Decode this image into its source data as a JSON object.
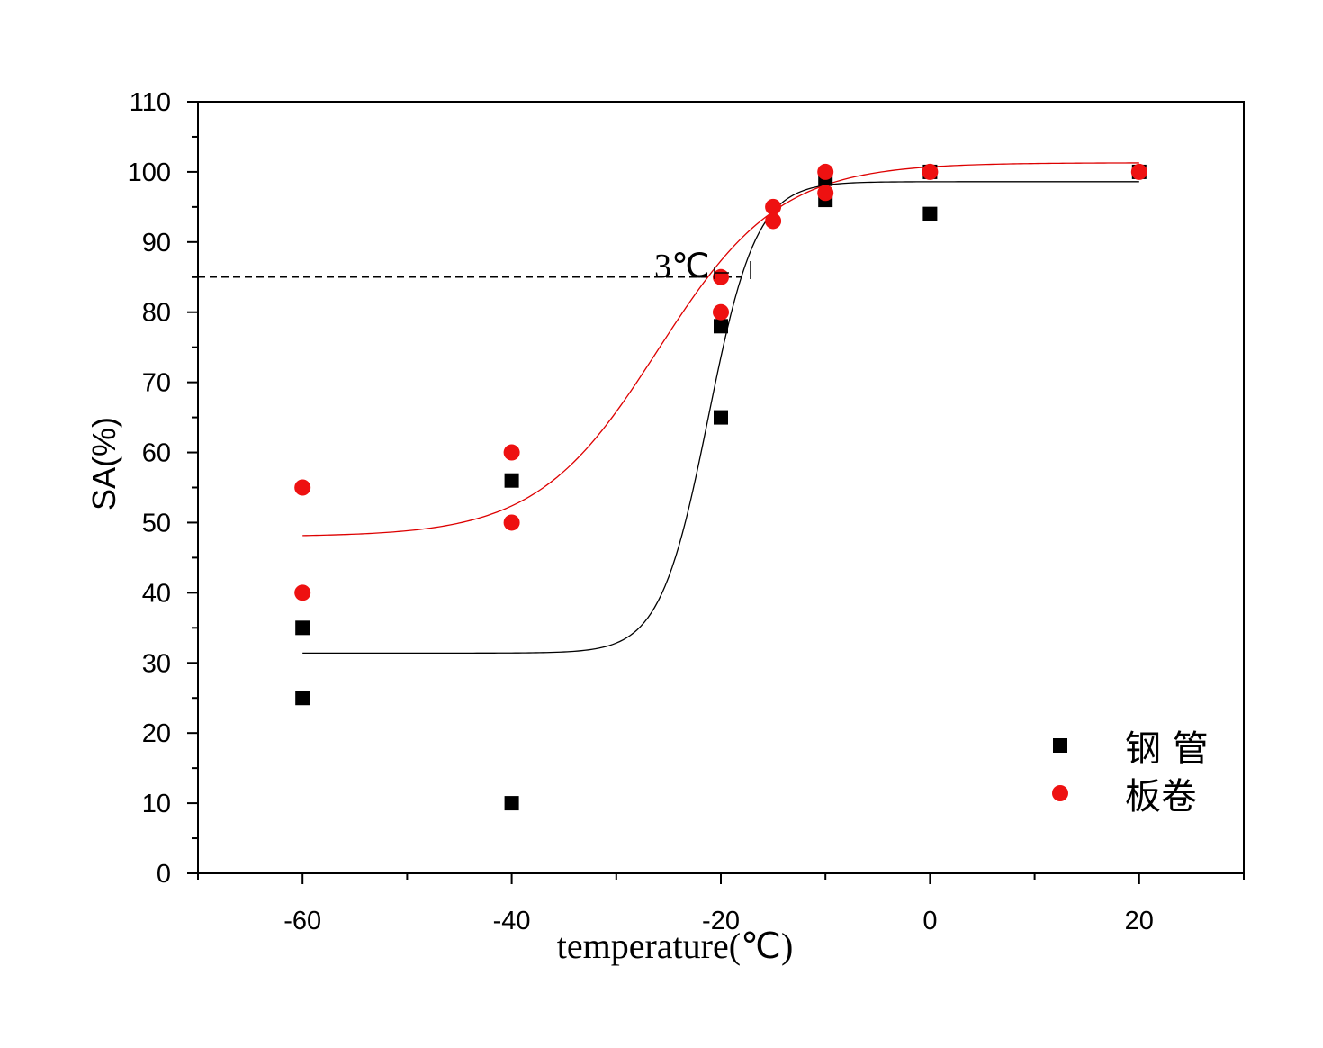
{
  "chart_data": {
    "type": "scatter",
    "title": "",
    "xlabel": "temperature(℃)",
    "ylabel": "SA(%)",
    "xlim": [
      -70,
      30
    ],
    "ylim": [
      0,
      110
    ],
    "x_ticks": [
      -60,
      -40,
      -20,
      0,
      20
    ],
    "x_tick_labels": [
      "-60",
      "-40",
      "-20",
      "0",
      "20"
    ],
    "y_ticks": [
      0,
      10,
      20,
      30,
      40,
      50,
      60,
      70,
      80,
      90,
      100,
      110
    ],
    "y_tick_labels": [
      "0",
      "10",
      "20",
      "30",
      "40",
      "50",
      "60",
      "70",
      "80",
      "90",
      "100",
      "110"
    ],
    "grid": false,
    "legend_position": "bottom-right",
    "series": [
      {
        "name": "钢 管",
        "marker": "square",
        "color": "#000000",
        "points": [
          [
            -60,
            35
          ],
          [
            -60,
            25
          ],
          [
            -40,
            56
          ],
          [
            -40,
            10
          ],
          [
            -20,
            78
          ],
          [
            -20,
            65
          ],
          [
            -10,
            99
          ],
          [
            -10,
            96
          ],
          [
            0,
            100
          ],
          [
            0,
            94
          ],
          [
            20,
            100
          ]
        ],
        "fit": {
          "color": "#000000",
          "model": "boltzmann",
          "A1": 31.4,
          "A2": 98.6,
          "x0": -21.2,
          "dx": 2.3,
          "range": [
            -60,
            20
          ]
        }
      },
      {
        "name": "板卷",
        "marker": "circle",
        "color": "#ee1111",
        "points": [
          [
            -60,
            55
          ],
          [
            -60,
            40
          ],
          [
            -40,
            60
          ],
          [
            -40,
            50
          ],
          [
            -20,
            85
          ],
          [
            -20,
            80
          ],
          [
            -15,
            95
          ],
          [
            -15,
            93
          ],
          [
            -10,
            100
          ],
          [
            -10,
            97
          ],
          [
            0,
            100
          ],
          [
            20,
            100
          ]
        ],
        "fit": {
          "color": "#dd0000",
          "model": "boltzmann",
          "A1": 48.0,
          "A2": 101.3,
          "x0": -26.0,
          "dx": 5.8,
          "range": [
            -60,
            20
          ]
        }
      }
    ],
    "reference_line": {
      "y": 85,
      "x_from": -70,
      "x_to": -18,
      "style": "dashed"
    },
    "annotation": {
      "text": "3℃",
      "x": -24,
      "y": 87
    }
  }
}
